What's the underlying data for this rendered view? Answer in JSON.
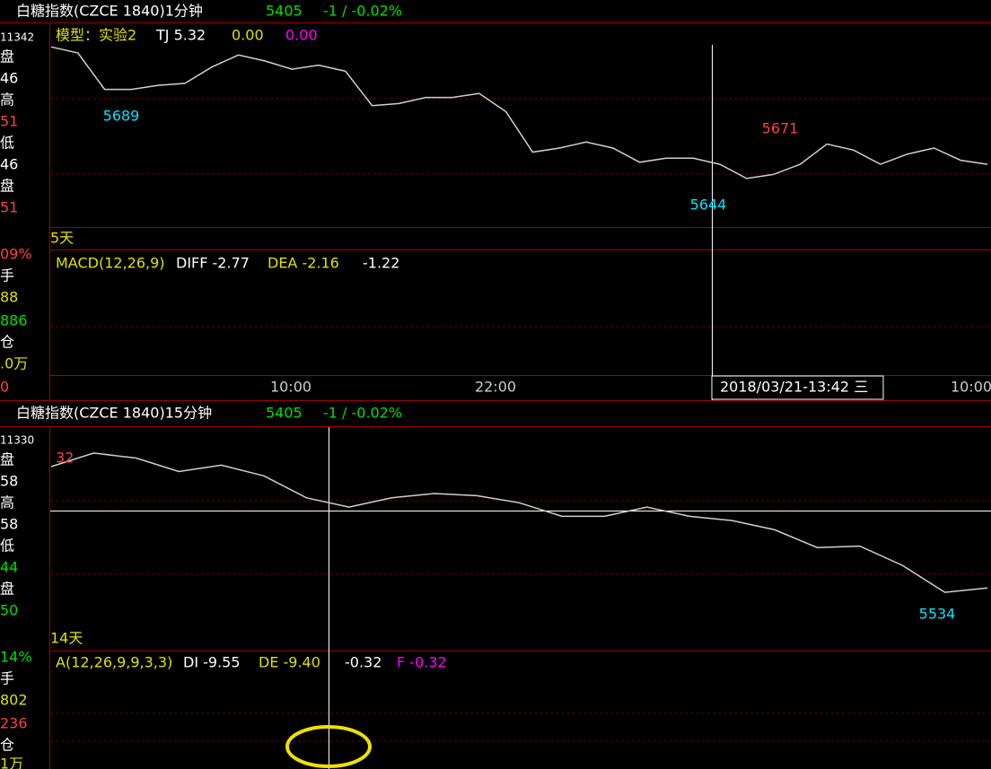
{
  "top_panel": {
    "title": "白糖指数(CZCE 1840)1分钟",
    "price": "5405",
    "change": "-1 / -0.02%",
    "sidebar": [
      {
        "text": "11342",
        "color": "#ffffff"
      },
      {
        "text": "盘",
        "color": "#ffffff"
      },
      {
        "text": "46",
        "color": "#ffffff"
      },
      {
        "text": "高",
        "color": "#ffffff"
      },
      {
        "text": "51",
        "color": "#ff4040"
      },
      {
        "text": "低",
        "color": "#ffffff"
      },
      {
        "text": "46",
        "color": "#ffffff"
      },
      {
        "text": "盘",
        "color": "#ffffff"
      },
      {
        "text": "51",
        "color": "#ff4040"
      },
      {
        "text": "09%",
        "color": "#ff4040"
      },
      {
        "text": "手",
        "color": "#ffffff"
      },
      {
        "text": "88",
        "color": "#e0e000"
      },
      {
        "text": "886",
        "color": "#00e000"
      },
      {
        "text": "仓",
        "color": "#ffffff"
      },
      {
        "text": ".0万",
        "color": "#e0e000"
      },
      {
        "text": "0",
        "color": "#ff4040"
      }
    ],
    "model": "模型：实验2",
    "tj": "TJ 5.32",
    "v1": "0.00",
    "v2": "0.00",
    "period": "5天",
    "indicator": "MACD(12,26,9)",
    "diff": "DIFF -2.77",
    "dea": "DEA -2.16",
    "macd": "-1.22",
    "time_labels": [
      "10:00",
      "22:00",
      "10:00"
    ],
    "cursor_time": "2018/03/21-13:42 三"
  },
  "bottom_panel": {
    "title": "白糖指数(CZCE 1840)15分钟",
    "price": "5405",
    "change": "-1 / -0.02%",
    "sidebar": [
      {
        "text": "11330",
        "color": "#ffffff"
      },
      {
        "text": "盘",
        "color": "#ffffff"
      },
      {
        "text": "58",
        "color": "#ffffff"
      },
      {
        "text": "高",
        "color": "#ffffff"
      },
      {
        "text": "58",
        "color": "#ffffff"
      },
      {
        "text": "低",
        "color": "#ffffff"
      },
      {
        "text": "44",
        "color": "#00e000"
      },
      {
        "text": "盘",
        "color": "#ffffff"
      },
      {
        "text": "50",
        "color": "#00e000"
      },
      {
        "text": "14%",
        "color": "#00e000"
      },
      {
        "text": "手",
        "color": "#ffffff"
      },
      {
        "text": "802",
        "color": "#e0e000"
      },
      {
        "text": "236",
        "color": "#ff4040"
      },
      {
        "text": "仓",
        "color": "#ffffff"
      },
      {
        "text": "1万",
        "color": "#e0e000"
      }
    ],
    "period": "14天",
    "indicator": "A(12,26,9,9,3,3)",
    "di": "DI -9.55",
    "de": "DE -9.40",
    "val": "-0.32",
    "f": "F -0.32"
  },
  "chart_data": [
    {
      "type": "line",
      "color": "#d0d0d0",
      "ylim": [
        5627,
        5717
      ],
      "values": [
        5716,
        5713,
        5695,
        5695,
        5697,
        5698,
        5706,
        5712,
        5709,
        5705,
        5707,
        5704,
        5687,
        5688,
        5691,
        5691,
        5693,
        5684,
        5664,
        5666,
        5669,
        5666,
        5659,
        5661,
        5661,
        5658,
        5651,
        5653,
        5658,
        5668,
        5665,
        5658,
        5663,
        5666,
        5660,
        5658
      ],
      "annotations": [
        {
          "text": "5689",
          "color": "#00e5ff"
        },
        {
          "text": "5671",
          "color": "#ff4040"
        },
        {
          "text": "5644",
          "color": "#00e5ff"
        }
      ]
    },
    {
      "type": "line",
      "color": "#d0d0d0",
      "ylim": [
        5458,
        5770
      ],
      "values": [
        5717,
        5736,
        5729,
        5710,
        5719,
        5704,
        5673,
        5660,
        5673,
        5679,
        5676,
        5666,
        5647,
        5647,
        5660,
        5647,
        5641,
        5628,
        5603,
        5605,
        5578,
        5540,
        5546
      ],
      "annotations": [
        {
          "text": "32",
          "color": "#ff4040"
        },
        {
          "text": "5534",
          "color": "#00e5ff"
        }
      ]
    }
  ]
}
